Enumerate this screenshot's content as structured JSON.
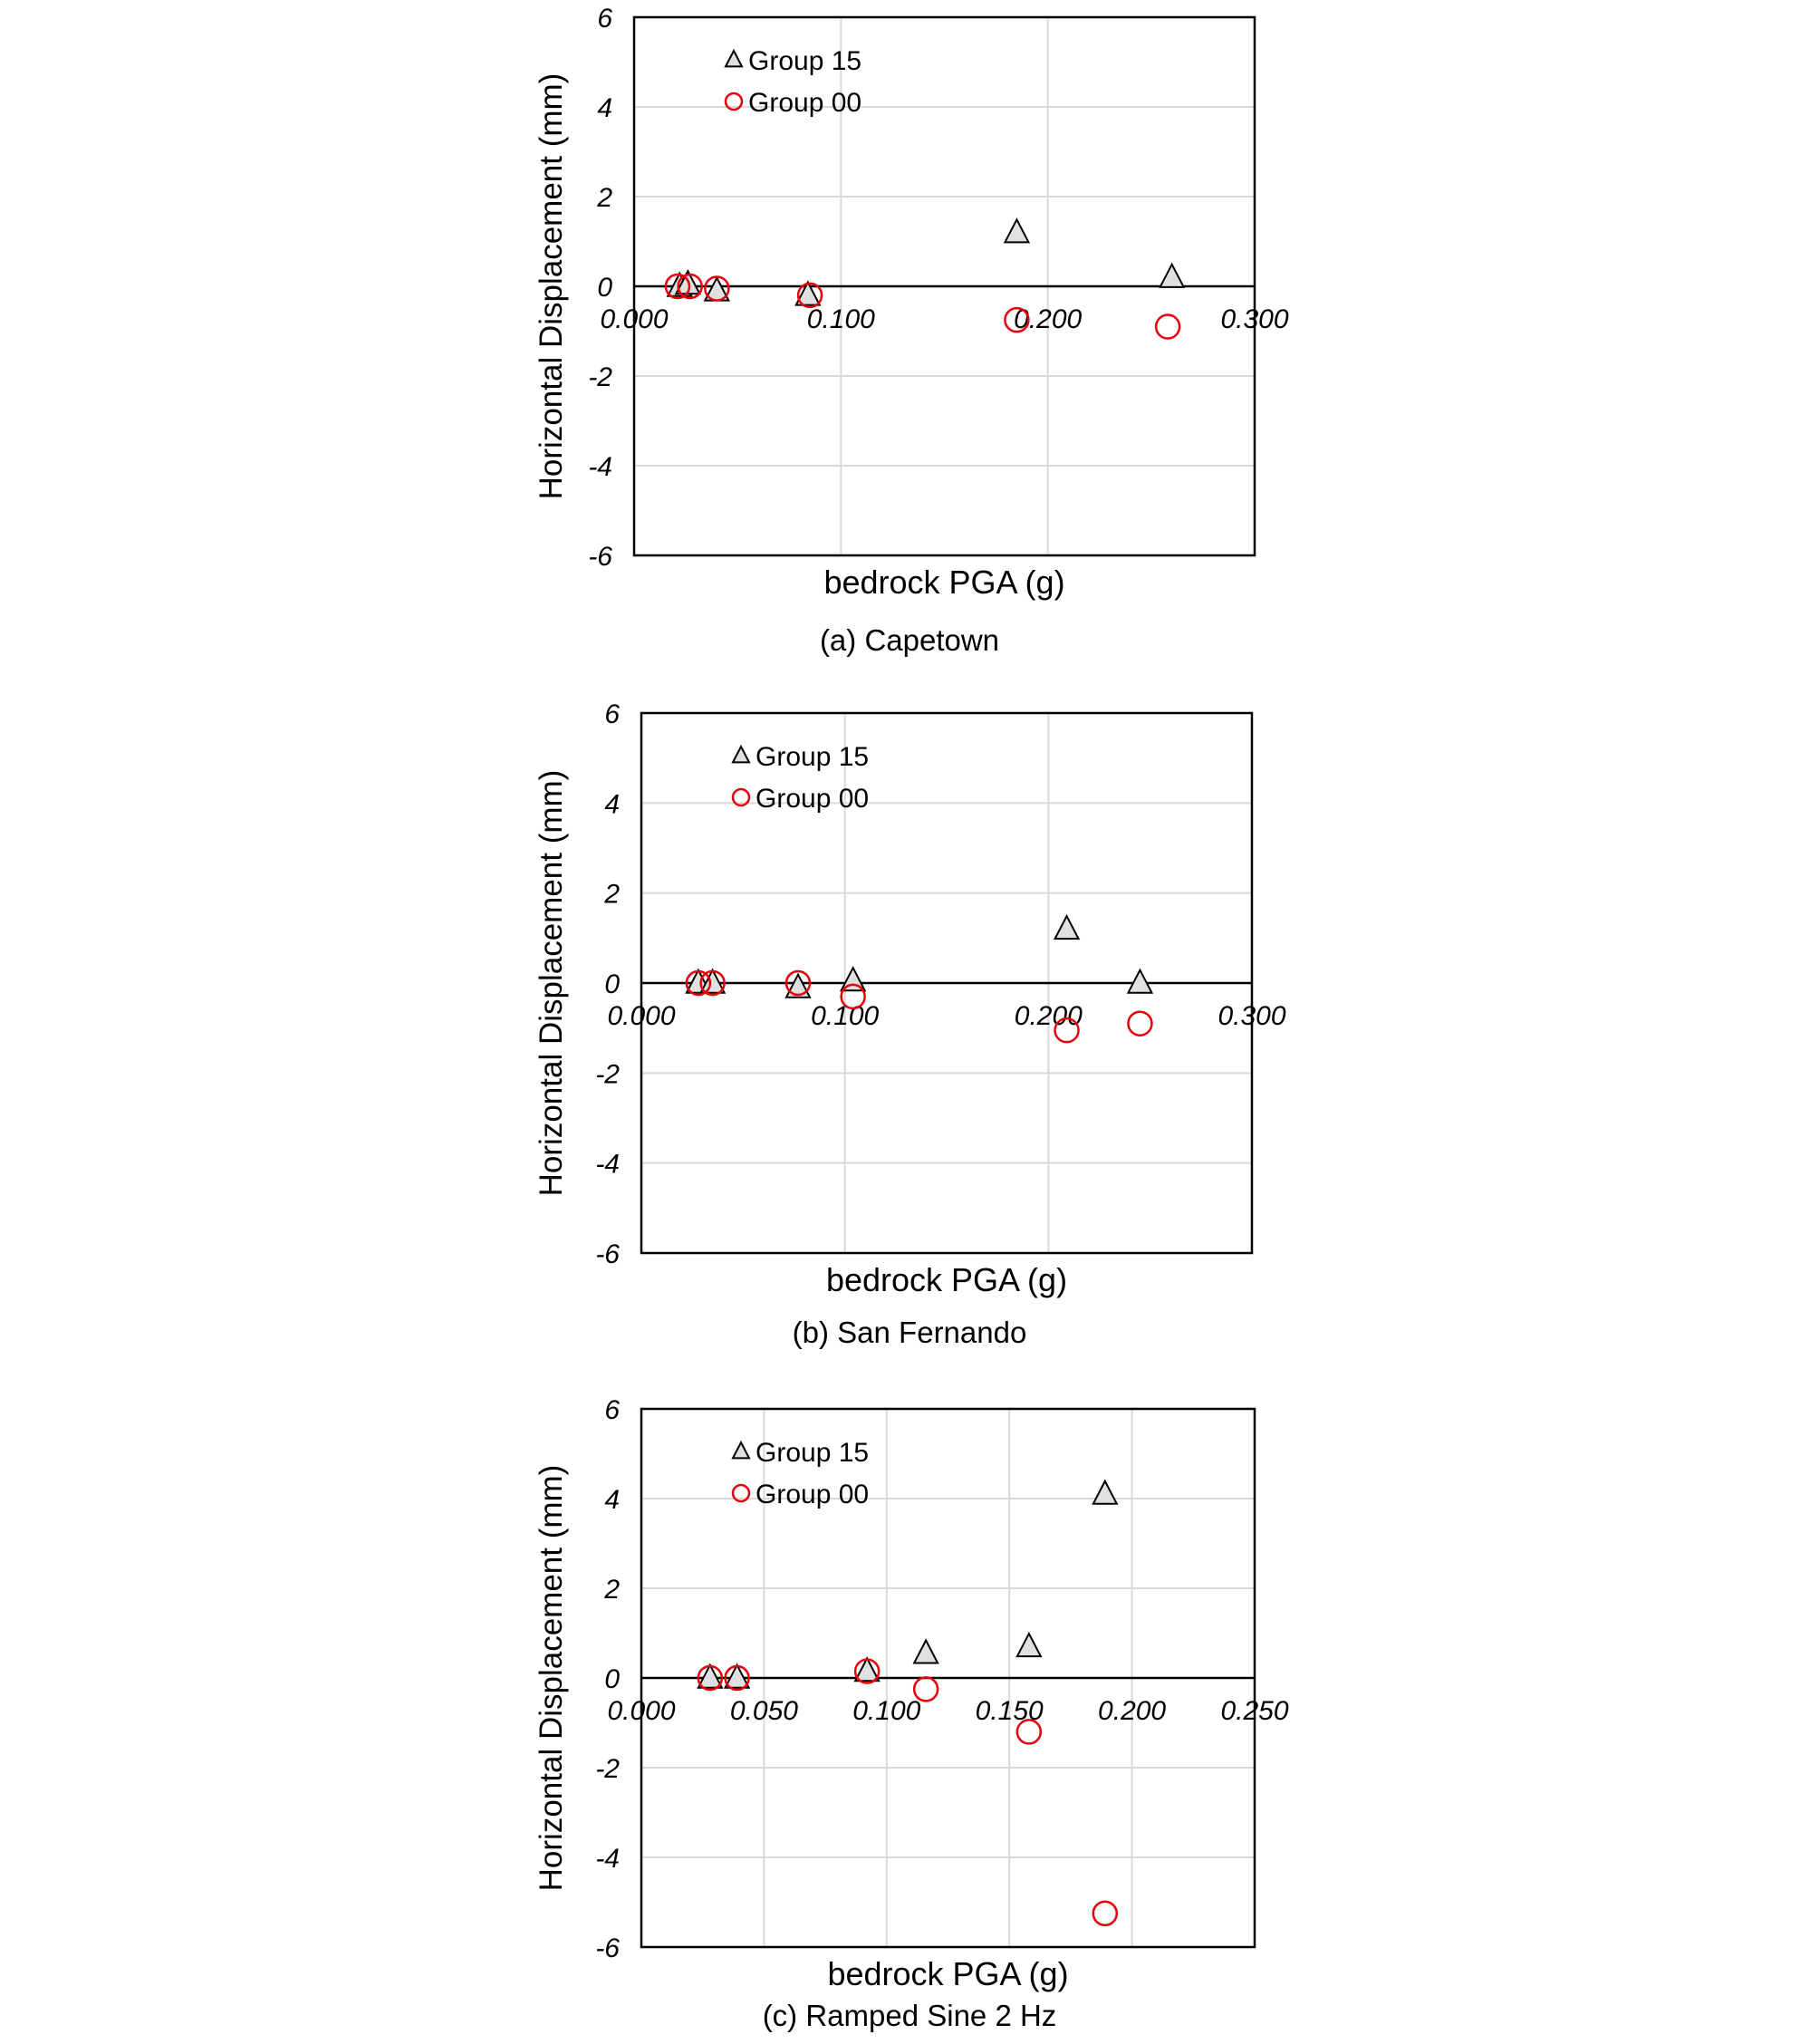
{
  "chart_data": [
    {
      "type": "scatter",
      "caption": "(a) Capetown",
      "xlabel": "bedrock PGA (g)",
      "ylabel": "Horizontal Displacement (mm)",
      "xlim": [
        0,
        0.3
      ],
      "ylim": [
        -6,
        6
      ],
      "xticks": [
        "0.000",
        "0.100",
        "0.200",
        "0.300"
      ],
      "xtick_values": [
        0,
        0.1,
        0.2,
        0.3
      ],
      "yticks": [
        "6",
        "4",
        "2",
        "0",
        "-2",
        "-4",
        "-6"
      ],
      "ytick_values": [
        6,
        4,
        2,
        0,
        -2,
        -4,
        -6
      ],
      "grid": true,
      "legend_position": "top-left",
      "series": [
        {
          "name": "Group 15",
          "marker": "triangle",
          "color": "#000000",
          "fill": "#e0e0e0",
          "x": [
            0.022,
            0.026,
            0.04,
            0.084,
            0.185,
            0.26
          ],
          "y": [
            0.0,
            0.05,
            -0.1,
            -0.2,
            1.2,
            0.2
          ]
        },
        {
          "name": "Group 00",
          "marker": "circle",
          "color": "#e8000b",
          "fill": "none",
          "x": [
            0.021,
            0.027,
            0.04,
            0.085,
            0.185,
            0.258
          ],
          "y": [
            0.0,
            0.0,
            -0.05,
            -0.2,
            -0.75,
            -0.9
          ]
        }
      ]
    },
    {
      "type": "scatter",
      "caption": "(b) San Fernando",
      "xlabel": "bedrock PGA (g)",
      "ylabel": "Horizontal Displacement (mm)",
      "xlim": [
        0,
        0.3
      ],
      "ylim": [
        -6,
        6
      ],
      "xticks": [
        "0.000",
        "0.100",
        "0.200",
        "0.300"
      ],
      "xtick_values": [
        0,
        0.1,
        0.2,
        0.3
      ],
      "yticks": [
        "6",
        "4",
        "2",
        "0",
        "-2",
        "-4",
        "-6"
      ],
      "ytick_values": [
        6,
        4,
        2,
        0,
        -2,
        -4,
        -6
      ],
      "grid": true,
      "legend_position": "top-left",
      "series": [
        {
          "name": "Group 15",
          "marker": "triangle",
          "color": "#000000",
          "fill": "#e0e0e0",
          "x": [
            0.028,
            0.035,
            0.077,
            0.104,
            0.209,
            0.245
          ],
          "y": [
            0.0,
            0.0,
            -0.1,
            0.05,
            1.2,
            0.0
          ]
        },
        {
          "name": "Group 00",
          "marker": "circle",
          "color": "#e8000b",
          "fill": "none",
          "x": [
            0.028,
            0.035,
            0.077,
            0.104,
            0.209,
            0.245
          ],
          "y": [
            0.0,
            0.0,
            0.0,
            -0.3,
            -1.05,
            -0.9
          ]
        }
      ]
    },
    {
      "type": "scatter",
      "caption": "(c) Ramped Sine 2 Hz",
      "xlabel": "bedrock PGA (g)",
      "ylabel": "Horizontal Displacement (mm)",
      "xlim": [
        0,
        0.25
      ],
      "ylim": [
        -6,
        6
      ],
      "xticks": [
        "0.000",
        "0.050",
        "0.100",
        "0.150",
        "0.200",
        "0.250"
      ],
      "xtick_values": [
        0,
        0.05,
        0.1,
        0.15,
        0.2,
        0.25
      ],
      "yticks": [
        "6",
        "4",
        "2",
        "0",
        "-2",
        "-4",
        "-6"
      ],
      "ytick_values": [
        6,
        4,
        2,
        0,
        -2,
        -4,
        -6
      ],
      "grid": true,
      "legend_position": "top-left",
      "series": [
        {
          "name": "Group 15",
          "marker": "triangle",
          "color": "#000000",
          "fill": "#e0e0e0",
          "x": [
            0.028,
            0.039,
            0.092,
            0.116,
            0.158,
            0.189
          ],
          "y": [
            0.0,
            0.0,
            0.15,
            0.55,
            0.7,
            4.1
          ]
        },
        {
          "name": "Group 00",
          "marker": "circle",
          "color": "#e8000b",
          "fill": "none",
          "x": [
            0.028,
            0.039,
            0.092,
            0.116,
            0.158,
            0.189
          ],
          "y": [
            0.0,
            0.0,
            0.15,
            -0.25,
            -1.2,
            -5.25
          ]
        }
      ]
    }
  ]
}
